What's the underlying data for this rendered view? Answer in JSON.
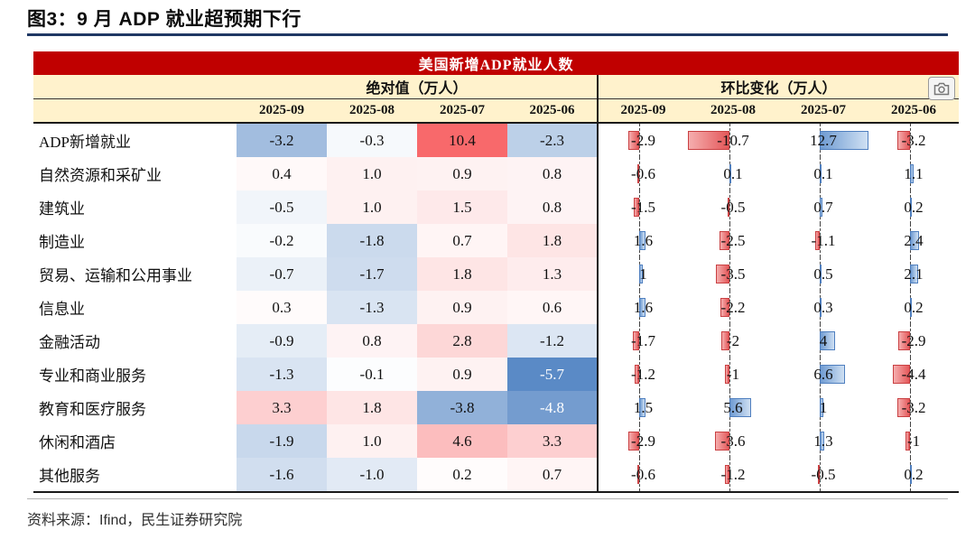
{
  "figure": {
    "title": "图3：9 月 ADP 就业超预期下行",
    "source": "资料来源：Ifind，民生证券研究院"
  },
  "colors": {
    "table_header_bg": "#C00000",
    "table_header_text": "#FFFFFF",
    "subheader_bg": "#FFF2CC",
    "title_rule": "#1F3864",
    "positive_bar": "#6F9BD2",
    "negative_bar": "#E4585A",
    "scale_low": "#5A8AC6",
    "scale_mid": "#FFFFFF",
    "scale_high": "#F8696B"
  },
  "icons": {
    "header_overlay": "camera-icon"
  },
  "chart_data": {
    "type": "table",
    "title": "美国新增ADP就业人数",
    "column_groups": [
      {
        "label": "绝对值（万人）",
        "columns": [
          "2025-09",
          "2025-08",
          "2025-07",
          "2025-06"
        ]
      },
      {
        "label": "环比变化（万人）",
        "columns": [
          "2025-09",
          "2025-08",
          "2025-07",
          "2025-06"
        ]
      }
    ],
    "rows": [
      {
        "label": "ADP新增就业",
        "abs": [
          "-3.2",
          "-0.3",
          "10.4",
          "-2.3"
        ],
        "mom": [
          "-2.9",
          "-10.7",
          "12.7",
          "-3.2"
        ]
      },
      {
        "label": "自然资源和采矿业",
        "abs": [
          "0.4",
          "1.0",
          "0.9",
          "0.8"
        ],
        "mom": [
          "-0.6",
          "0.1",
          "0.1",
          "1.1"
        ]
      },
      {
        "label": "建筑业",
        "abs": [
          "-0.5",
          "1.0",
          "1.5",
          "0.8"
        ],
        "mom": [
          "-1.5",
          "-0.5",
          "0.7",
          "0.2"
        ]
      },
      {
        "label": "制造业",
        "abs": [
          "-0.2",
          "-1.8",
          "0.7",
          "1.8"
        ],
        "mom": [
          "1.6",
          "-2.5",
          "-1.1",
          "2.4"
        ]
      },
      {
        "label": "贸易、运输和公用事业",
        "abs": [
          "-0.7",
          "-1.7",
          "1.8",
          "1.3"
        ],
        "mom": [
          "1",
          "-3.5",
          "0.5",
          "2.1"
        ]
      },
      {
        "label": "信息业",
        "abs": [
          "0.3",
          "-1.3",
          "0.9",
          "0.6"
        ],
        "mom": [
          "1.6",
          "-2.2",
          "0.3",
          "0.2"
        ]
      },
      {
        "label": "金融活动",
        "abs": [
          "-0.9",
          "0.8",
          "2.8",
          "-1.2"
        ],
        "mom": [
          "-1.7",
          "-2",
          "4",
          "-2.9"
        ]
      },
      {
        "label": "专业和商业服务",
        "abs": [
          "-1.3",
          "-0.1",
          "0.9",
          "-5.7"
        ],
        "mom": [
          "-1.2",
          "-1",
          "6.6",
          "-4.4"
        ]
      },
      {
        "label": "教育和医疗服务",
        "abs": [
          "3.3",
          "1.8",
          "-3.8",
          "-4.8"
        ],
        "mom": [
          "1.5",
          "5.6",
          "1",
          "-3.2"
        ]
      },
      {
        "label": "休闲和酒店",
        "abs": [
          "-1.9",
          "1.0",
          "4.6",
          "3.3"
        ],
        "mom": [
          "-2.9",
          "-3.6",
          "1.3",
          "-1"
        ]
      },
      {
        "label": "其他服务",
        "abs": [
          "-1.6",
          "-1.0",
          "0.2",
          "0.7"
        ],
        "mom": [
          "-0.6",
          "-1.2",
          "-0.5",
          "0.2"
        ]
      }
    ],
    "conditional_formatting": {
      "color_scale": {
        "applies_to": "abs",
        "min": -5.7,
        "max": 10.4,
        "min_color": "#5A8AC6",
        "mid_color": "#FFFFFF",
        "max_color": "#F8696B"
      },
      "data_bars": {
        "applies_to": "mom",
        "min": -10.7,
        "max": 12.7,
        "negative_color": "#E4585A",
        "positive_color": "#6F9BD2"
      }
    }
  }
}
